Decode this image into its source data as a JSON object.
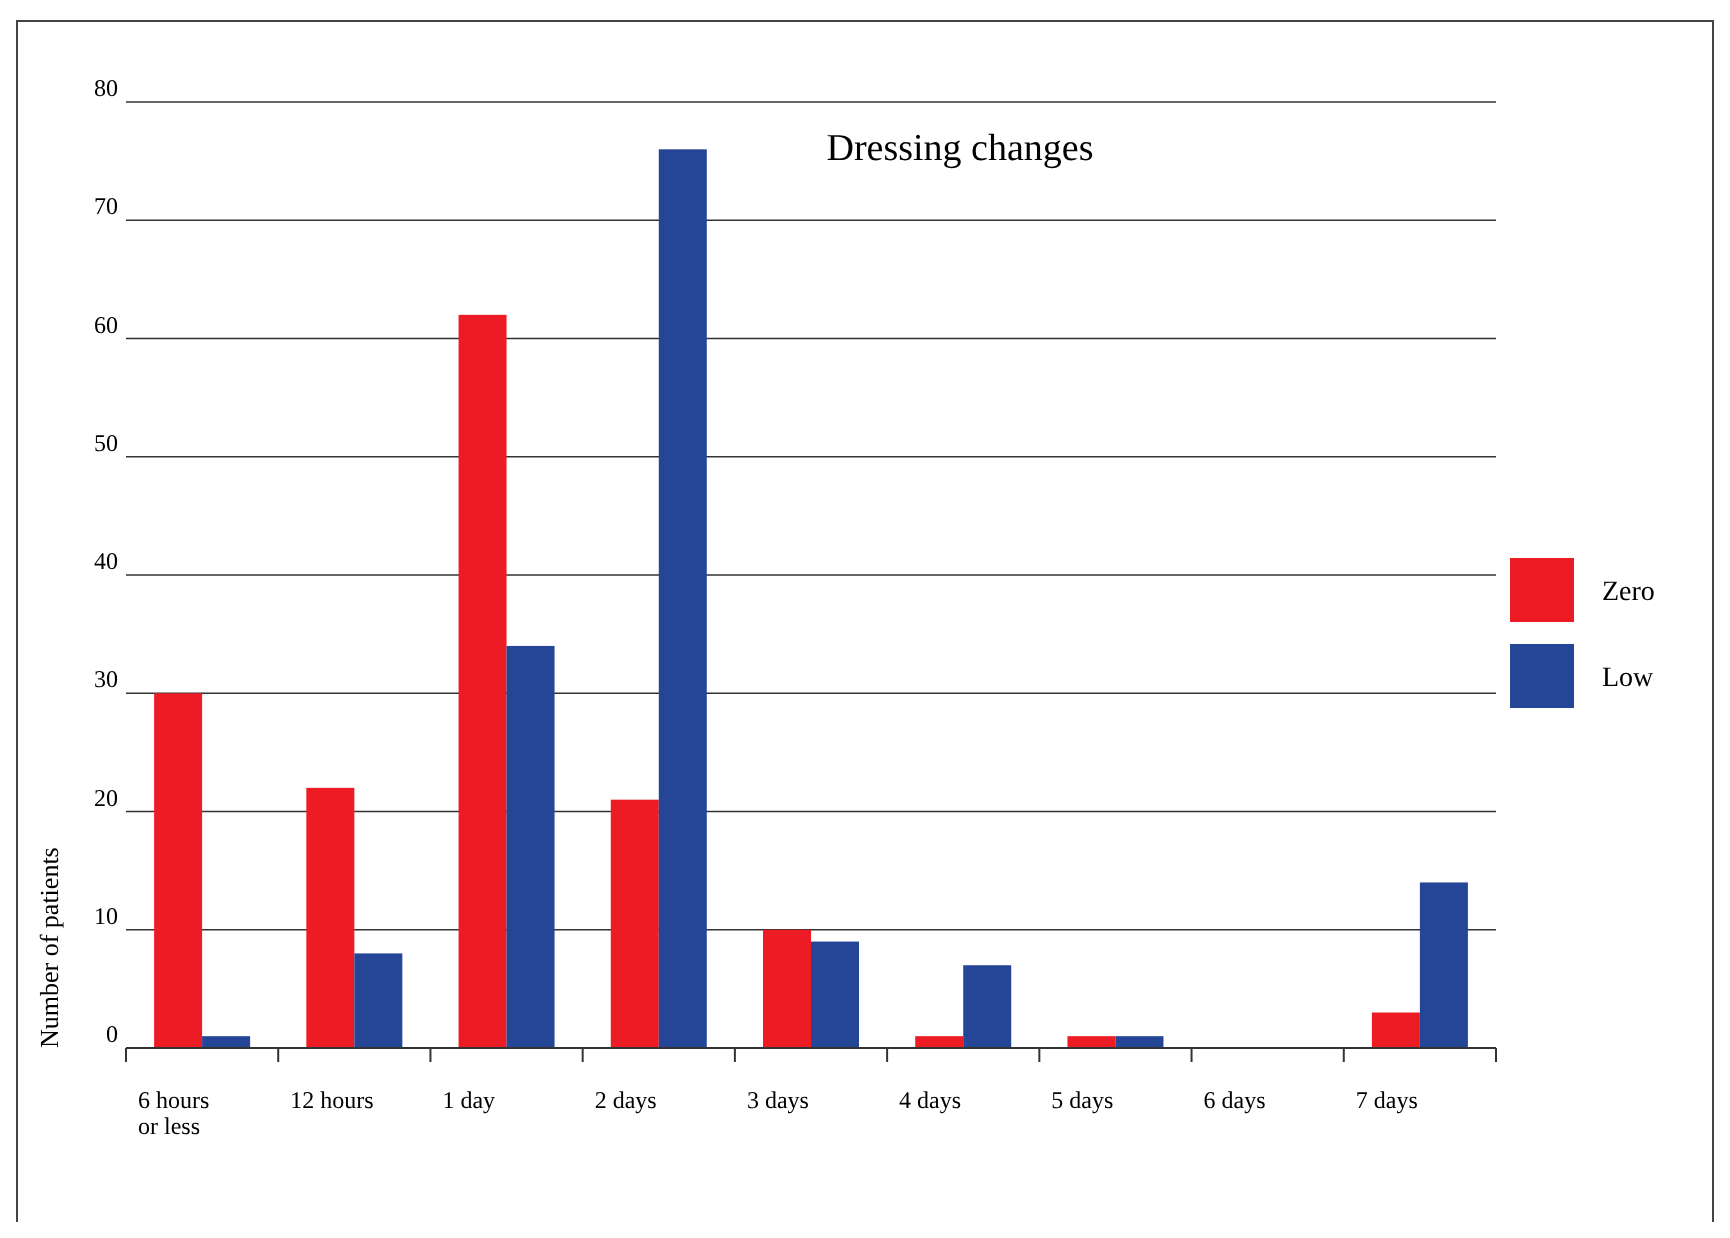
{
  "chart_data": {
    "type": "bar",
    "title": "Dressing changes",
    "ylabel": "Number of patients",
    "categories": [
      "6 hours or less",
      "12 hours",
      "1 day",
      "2 days",
      "3 days",
      "4 days",
      "5 days",
      "6 days",
      "7 days"
    ],
    "series": [
      {
        "name": "Zero",
        "color": "#ed1c24",
        "values": [
          30,
          22,
          62,
          21,
          10,
          1,
          1,
          0,
          3
        ]
      },
      {
        "name": "Low",
        "color": "#254596",
        "values": [
          1,
          8,
          34,
          76,
          9,
          7,
          1,
          0,
          14
        ]
      }
    ],
    "ylim": [
      0,
      80
    ],
    "yticks": [
      0,
      10,
      20,
      30,
      40,
      50,
      60,
      70,
      80
    ],
    "grid": "y",
    "legend": "right"
  }
}
